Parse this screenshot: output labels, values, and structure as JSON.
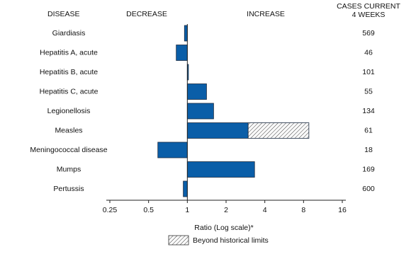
{
  "chart_data": {
    "type": "bar",
    "headers": {
      "disease": "DISEASE",
      "decrease": "DECREASE",
      "increase": "INCREASE",
      "cases": [
        "CASES CURRENT",
        "4 WEEKS"
      ]
    },
    "categories": [
      "Giardiasis",
      "Hepatitis A, acute",
      "Hepatitis B, acute",
      "Hepatitis C, acute",
      "Legionellosis",
      "Measles",
      "Meningococcal disease",
      "Mumps",
      "Pertussis"
    ],
    "values": [
      0.95,
      0.82,
      1.02,
      1.41,
      1.6,
      8.8,
      0.59,
      3.33,
      0.93
    ],
    "historical_limit": [
      null,
      null,
      null,
      null,
      null,
      2.97,
      null,
      null,
      null
    ],
    "cases": [
      569,
      46,
      101,
      55,
      134,
      61,
      18,
      169,
      600
    ],
    "color": "#0a5ea8",
    "xscale": "log",
    "xlim": [
      0.25,
      16
    ],
    "xticks": [
      0.25,
      0.5,
      1,
      2,
      4,
      8,
      16
    ],
    "xlabel": "Ratio (Log scale)*",
    "legend": "Beyond historical limits"
  }
}
